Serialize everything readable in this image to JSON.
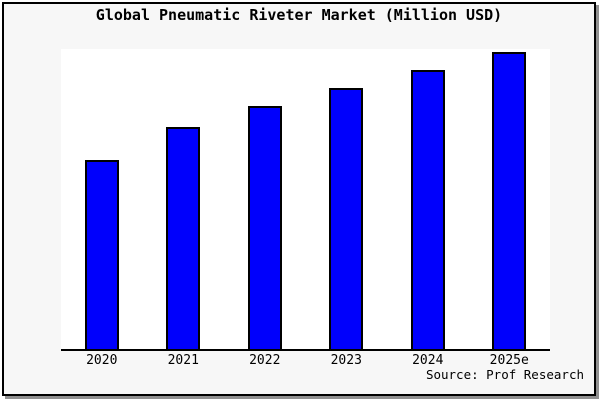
{
  "chart_data": {
    "type": "bar",
    "title": "Global Pneumatic Riveter Market (Million USD)",
    "categories": [
      "2020",
      "2021",
      "2022",
      "2023",
      "2024",
      "2025e"
    ],
    "values": [
      63,
      74,
      81,
      87,
      93,
      99
    ],
    "ylim": [
      0,
      100
    ],
    "xlabel": "",
    "ylabel": "",
    "grid": false,
    "legend": false,
    "y_axis_visible": false,
    "source": "Source: Prof Research"
  },
  "colors": {
    "bar_fill": "#0000fc",
    "bar_border": "#000000",
    "figure_bg": "#f7f7f7",
    "plot_bg": "#ffffff",
    "frame_border": "#000000",
    "frame_shadow": "#909090",
    "text": "#000000"
  }
}
